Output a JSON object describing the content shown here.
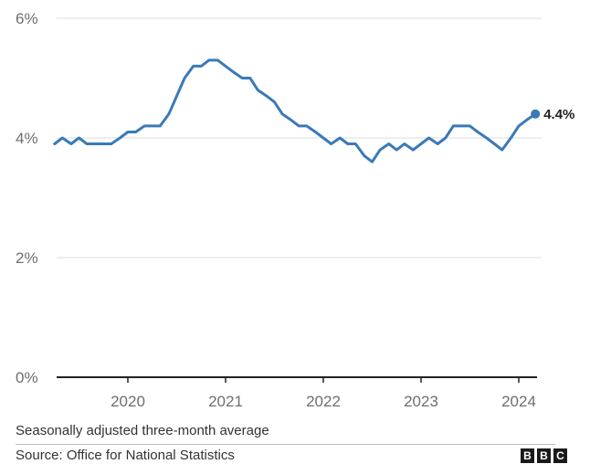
{
  "chart_data": {
    "type": "line",
    "title": "",
    "xlabel": "",
    "ylabel": "",
    "ylim": [
      0,
      6
    ],
    "y_ticks": [
      "0%",
      "2%",
      "4%",
      "6%"
    ],
    "y_tick_values": [
      0,
      2,
      4,
      6
    ],
    "x_ticks": [
      "2020",
      "2021",
      "2022",
      "2023",
      "2024"
    ],
    "x_tick_values": [
      2020,
      2021,
      2022,
      2023,
      2024
    ],
    "grid": true,
    "line_color": "#3a7ab8",
    "end_label": "4.4%",
    "series": [
      {
        "x": [
          2019.25,
          2019.33,
          2019.42,
          2019.5,
          2019.58,
          2019.67,
          2019.75,
          2019.83,
          2019.92,
          2020.0,
          2020.08,
          2020.17,
          2020.25,
          2020.33,
          2020.42,
          2020.5,
          2020.58,
          2020.67,
          2020.75,
          2020.83,
          2020.92,
          2021.0,
          2021.08,
          2021.17,
          2021.25,
          2021.33,
          2021.42,
          2021.5,
          2021.58,
          2021.67,
          2021.75,
          2021.83,
          2021.92,
          2022.0,
          2022.08,
          2022.17,
          2022.25,
          2022.33,
          2022.42,
          2022.5,
          2022.58,
          2022.67,
          2022.75,
          2022.83,
          2022.92,
          2023.0,
          2023.08,
          2023.17,
          2023.25,
          2023.33,
          2023.42,
          2023.5,
          2023.58,
          2023.67,
          2023.75,
          2023.83,
          2023.92,
          2024.0,
          2024.08,
          2024.17
        ],
        "values": [
          3.9,
          4.0,
          3.9,
          4.0,
          3.9,
          3.9,
          3.9,
          3.9,
          4.0,
          4.1,
          4.1,
          4.2,
          4.2,
          4.2,
          4.4,
          4.7,
          5.0,
          5.2,
          5.2,
          5.3,
          5.3,
          5.2,
          5.1,
          5.0,
          5.0,
          4.8,
          4.7,
          4.6,
          4.4,
          4.3,
          4.2,
          4.2,
          4.1,
          4.0,
          3.9,
          4.0,
          3.9,
          3.9,
          3.7,
          3.6,
          3.8,
          3.9,
          3.8,
          3.9,
          3.8,
          3.9,
          4.0,
          3.9,
          4.0,
          4.2,
          4.2,
          4.2,
          4.1,
          4.0,
          3.9,
          3.8,
          4.0,
          4.2,
          4.3,
          4.4
        ]
      }
    ]
  },
  "footer": {
    "note": "Seasonally adjusted three-month average",
    "source": "Source: Office for National Statistics",
    "logo_letters": [
      "B",
      "B",
      "C"
    ]
  }
}
